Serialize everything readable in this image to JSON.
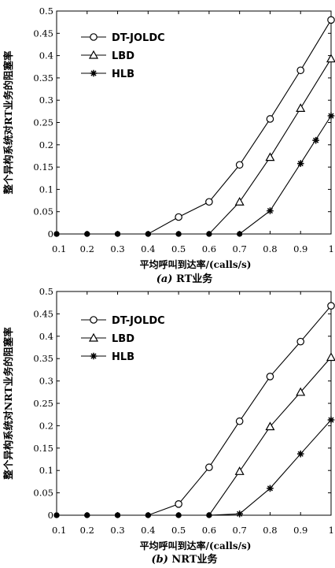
{
  "chart_data": [
    {
      "type": "line",
      "caption_prefix": "(a)",
      "caption_text": "RT业务",
      "xlabel": "平均呼叫到达率/(calls/s)",
      "ylabel": "整个异构系统对RT业务的阻塞率",
      "x": [
        0.1,
        0.2,
        0.3,
        0.4,
        0.5,
        0.6,
        0.7,
        0.8,
        0.9,
        1.0
      ],
      "xticks": [
        "0.1",
        "0.2",
        "0.3",
        "0.4",
        "0.5",
        "0.6",
        "0.7",
        "0.8",
        "0.9",
        "1"
      ],
      "yticks": [
        "0",
        "0.05",
        "0.1",
        "0.15",
        "0.2",
        "0.25",
        "0.3",
        "0.35",
        "0.4",
        "0.45",
        "0.5"
      ],
      "xlim": [
        0.1,
        1.0
      ],
      "ylim": [
        0,
        0.5
      ],
      "legend_position": "top-left",
      "grid": false,
      "series": [
        {
          "name": "DT-JOLDC",
          "marker": "circle",
          "values": [
            0,
            0,
            0,
            0,
            0.038,
            0.072,
            0.155,
            0.258,
            0.367,
            0.48
          ]
        },
        {
          "name": "LBD",
          "marker": "triangle",
          "values": [
            0,
            0,
            0,
            0,
            0,
            0,
            0.072,
            0.172,
            0.282,
            0.393
          ]
        },
        {
          "name": "HLB",
          "marker": "asterisk",
          "values": [
            0,
            0,
            0,
            0,
            0,
            0,
            0,
            0.052,
            0.158,
            0.265
          ]
        }
      ],
      "extra_markers": [
        {
          "series": 2,
          "x": 0.95,
          "y": 0.21
        }
      ]
    },
    {
      "type": "line",
      "caption_prefix": "(b)",
      "caption_text": "NRT业务",
      "xlabel": "平均呼叫到达率/(calls/s)",
      "ylabel": "整个异构系统对NRT业务的阻塞率",
      "x": [
        0.1,
        0.2,
        0.3,
        0.4,
        0.5,
        0.6,
        0.7,
        0.8,
        0.9,
        1.0
      ],
      "xticks": [
        "0.1",
        "0.2",
        "0.3",
        "0.4",
        "0.5",
        "0.6",
        "0.7",
        "0.8",
        "0.9",
        "1"
      ],
      "yticks": [
        "0",
        "0.05",
        "0.1",
        "0.15",
        "0.2",
        "0.25",
        "0.3",
        "0.35",
        "0.4",
        "0.45",
        "0.5"
      ],
      "xlim": [
        0.1,
        1.0
      ],
      "ylim": [
        0,
        0.5
      ],
      "legend_position": "top-left",
      "grid": false,
      "series": [
        {
          "name": "DT-JOLDC",
          "marker": "circle",
          "values": [
            0,
            0,
            0,
            0,
            0.025,
            0.107,
            0.21,
            0.31,
            0.388,
            0.468
          ]
        },
        {
          "name": "LBD",
          "marker": "triangle",
          "values": [
            0,
            0,
            0,
            0,
            0,
            0,
            0.098,
            0.198,
            0.275,
            0.353
          ]
        },
        {
          "name": "HLB",
          "marker": "asterisk",
          "values": [
            0,
            0,
            0,
            0,
            0,
            0,
            0.003,
            0.06,
            0.137,
            0.213
          ]
        }
      ],
      "extra_markers": []
    }
  ]
}
